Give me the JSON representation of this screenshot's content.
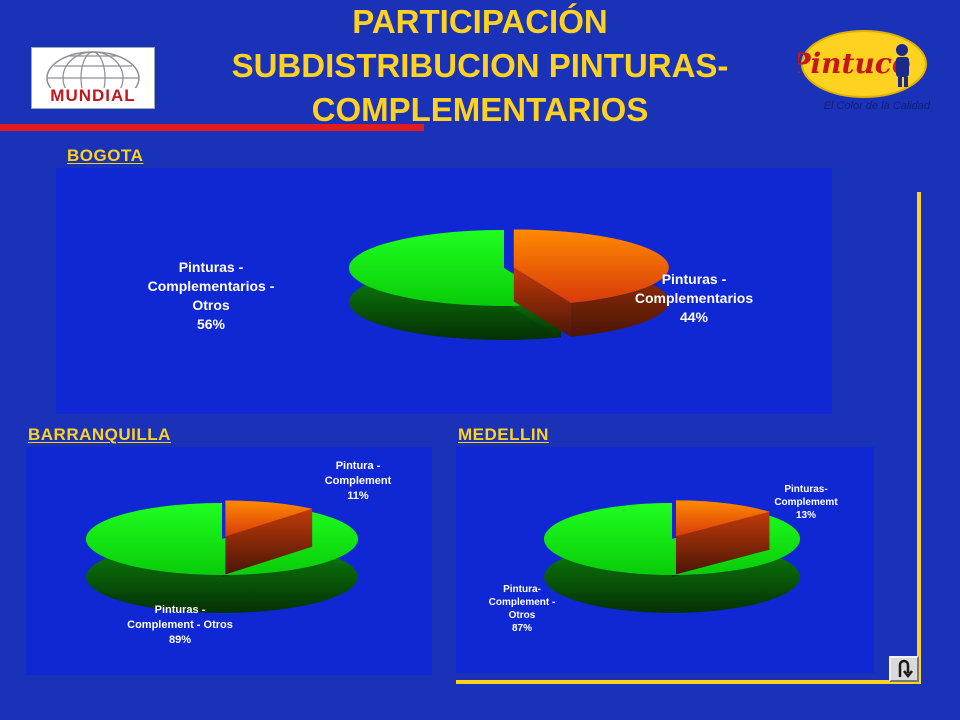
{
  "title": {
    "line1": "PARTICIPACIÓN",
    "line2": "SUBDISTRIBUCION PINTURAS-",
    "line3": "COMPLEMENTARIOS"
  },
  "logos": {
    "mundial": "MUNDIAL",
    "pintuco": "Pintuco",
    "pintuco_tagline": "El Color de la Calidad"
  },
  "colors": {
    "background": "#1a32b8",
    "panel": "#0f28d4",
    "title": "#ffd21f",
    "orange": "#ff6a00",
    "green": "#11ff11"
  },
  "sections": {
    "bogota": "BOGOTA",
    "barranquilla": "BARRANQUILLA",
    "medellin": "MEDELLIN"
  },
  "return_icon": "return-u-turn-icon",
  "chart_data": [
    {
      "type": "pie",
      "id": "bogota",
      "title": "BOGOTA",
      "slices": [
        {
          "label": "Pinturas - Complementarios",
          "value": 44,
          "display": "44%"
        },
        {
          "label": "Pinturas - Complementarios - Otros",
          "value": 56,
          "display": "56%"
        }
      ]
    },
    {
      "type": "pie",
      "id": "barranquilla",
      "title": "BARRANQUILLA",
      "slices": [
        {
          "label": "Pintura - Complement",
          "value": 11,
          "display": "11%"
        },
        {
          "label": "Pinturas - Complement - Otros",
          "value": 89,
          "display": "89%"
        }
      ]
    },
    {
      "type": "pie",
      "id": "medellin",
      "title": "MEDELLIN",
      "slices": [
        {
          "label": "Pinturas- Complememt",
          "value": 13,
          "display": "13%"
        },
        {
          "label": "Pintura- Complement - Otros",
          "value": 87,
          "display": "87%"
        }
      ]
    }
  ]
}
